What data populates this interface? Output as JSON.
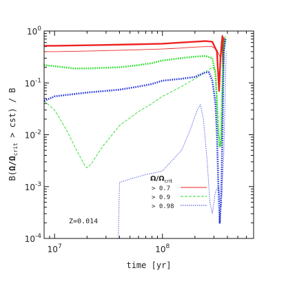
{
  "chart_data": {
    "type": "line",
    "title": "",
    "xlabel": "time [yr]",
    "ylabel": "B(Ω/Ωcrit > cst) / B",
    "ylabel_parts": {
      "prefix": "B(",
      "omega_ratio_numerator": "Ω",
      "slash": "/",
      "omega_ratio_denominator": "Ω",
      "subscript": "crit",
      "suffix": " > cst) / B"
    },
    "xscale": "log",
    "yscale": "log",
    "xlim": [
      8000000,
      700000000
    ],
    "ylim": [
      0.0001,
      1
    ],
    "grid": false,
    "legend": {
      "title_main": "Ω/Ω",
      "title_sub": "crit",
      "placement": "lower-center",
      "entries": [
        "> 0.7",
        "> 0.9",
        "> 0.98"
      ]
    },
    "annotation": "Z=0.014",
    "x_ticks": [
      {
        "value": 10000000,
        "base": "10",
        "exp": "7"
      },
      {
        "value": 100000000,
        "base": "10",
        "exp": "8"
      }
    ],
    "y_ticks": [
      {
        "value": 1,
        "base": "10",
        "exp": "0"
      },
      {
        "value": 0.1,
        "base": "10",
        "exp": "-1"
      },
      {
        "value": 0.01,
        "base": "10",
        "exp": "-2"
      },
      {
        "value": 0.001,
        "base": "10",
        "exp": "-3"
      },
      {
        "value": 0.0001,
        "base": "10",
        "exp": "-4"
      }
    ],
    "series": [
      {
        "name": "> 0.7",
        "mass_curves": [
          {
            "color": "#ee2222",
            "style": "solid-thick",
            "points": [
              [
                8000000,
                0.52
              ],
              [
                10000000,
                0.52
              ],
              [
                20000000,
                0.53
              ],
              [
                50000000,
                0.55
              ],
              [
                100000000,
                0.57
              ],
              [
                150000000,
                0.6
              ],
              [
                200000000,
                0.62
              ],
              [
                250000000,
                0.64
              ],
              [
                290000000,
                0.62
              ],
              [
                320000000,
                0.4
              ],
              [
                335000000,
                0.07
              ],
              [
                345000000,
                0.3
              ],
              [
                355000000,
                0.6
              ],
              [
                360000000,
                0.8
              ],
              [
                365000000,
                0.2
              ],
              [
                370000000,
                0.75
              ]
            ]
          },
          {
            "color": "#ee2222",
            "style": "solid-thin",
            "points": [
              [
                8000000,
                0.4
              ],
              [
                10000000,
                0.4
              ],
              [
                20000000,
                0.41
              ],
              [
                50000000,
                0.43
              ],
              [
                100000000,
                0.45
              ],
              [
                150000000,
                0.47
              ],
              [
                200000000,
                0.49
              ],
              [
                250000000,
                0.5
              ],
              [
                290000000,
                0.5
              ],
              [
                320000000,
                0.43
              ],
              [
                345000000,
                0.3
              ],
              [
                355000000,
                0.5
              ],
              [
                362000000,
                0.75
              ]
            ]
          }
        ]
      },
      {
        "name": "> 0.9",
        "mass_curves": [
          {
            "color": "#22dd22",
            "style": "dotted-thick",
            "points": [
              [
                8000000,
                0.22
              ],
              [
                10000000,
                0.21
              ],
              [
                15000000,
                0.19
              ],
              [
                20000000,
                0.19
              ],
              [
                40000000,
                0.2
              ],
              [
                60000000,
                0.22
              ],
              [
                80000000,
                0.24
              ],
              [
                100000000,
                0.27
              ],
              [
                150000000,
                0.3
              ],
              [
                200000000,
                0.32
              ],
              [
                250000000,
                0.33
              ],
              [
                290000000,
                0.3
              ],
              [
                310000000,
                0.15
              ],
              [
                320000000,
                0.04
              ],
              [
                330000000,
                0.01
              ],
              [
                340000000,
                0.006
              ],
              [
                350000000,
                0.008
              ],
              [
                360000000,
                0.1
              ],
              [
                370000000,
                0.5
              ],
              [
                380000000,
                0.8
              ]
            ]
          },
          {
            "color": "#22dd22",
            "style": "dashed-thin",
            "points": [
              [
                8000000,
                0.045
              ],
              [
                10000000,
                0.03
              ],
              [
                13000000,
                0.012
              ],
              [
                16000000,
                0.005
              ],
              [
                19000000,
                0.0026
              ],
              [
                20000000,
                0.0023
              ],
              [
                22000000,
                0.0028
              ],
              [
                28000000,
                0.006
              ],
              [
                40000000,
                0.015
              ],
              [
                60000000,
                0.028
              ],
              [
                80000000,
                0.04
              ],
              [
                100000000,
                0.055
              ],
              [
                150000000,
                0.085
              ],
              [
                200000000,
                0.12
              ],
              [
                250000000,
                0.16
              ],
              [
                290000000,
                0.2
              ],
              [
                310000000,
                0.18
              ],
              [
                320000000,
                0.05
              ],
              [
                330000000,
                0.012
              ],
              [
                340000000,
                0.008
              ],
              [
                350000000,
                0.006
              ],
              [
                360000000,
                0.1
              ],
              [
                370000000,
                0.6
              ]
            ]
          }
        ]
      },
      {
        "name": "> 0.98",
        "mass_curves": [
          {
            "color": "#2233dd",
            "style": "dotted-thick",
            "points": [
              [
                8000000,
                0.045
              ],
              [
                10000000,
                0.055
              ],
              [
                20000000,
                0.065
              ],
              [
                40000000,
                0.074
              ],
              [
                60000000,
                0.085
              ],
              [
                80000000,
                0.095
              ],
              [
                100000000,
                0.11
              ],
              [
                150000000,
                0.12
              ],
              [
                200000000,
                0.13
              ],
              [
                250000000,
                0.16
              ],
              [
                270000000,
                0.16
              ],
              [
                290000000,
                0.11
              ],
              [
                310000000,
                0.04
              ],
              [
                320000000,
                0.01
              ],
              [
                330000000,
                0.001
              ],
              [
                340000000,
                0.0002
              ],
              [
                350000000,
                0.0006
              ],
              [
                360000000,
                0.01
              ],
              [
                370000000,
                0.4
              ],
              [
                385000000,
                0.7
              ]
            ]
          },
          {
            "color": "#2233dd",
            "style": "dotted-thin",
            "points": [
              [
                39000000,
                0.0001
              ],
              [
                40000000,
                0.0012
              ],
              [
                50000000,
                0.0014
              ],
              [
                70000000,
                0.0017
              ],
              [
                100000000,
                0.002
              ],
              [
                150000000,
                0.005
              ],
              [
                180000000,
                0.012
              ],
              [
                210000000,
                0.03
              ],
              [
                225000000,
                0.038
              ],
              [
                240000000,
                0.02
              ],
              [
                260000000,
                0.003
              ],
              [
                275000000,
                0.0005
              ],
              [
                290000000,
                0.0003
              ],
              [
                310000000,
                0.0008
              ],
              [
                330000000,
                0.001
              ],
              [
                350000000,
                0.0004
              ],
              [
                370000000,
                0.004
              ],
              [
                390000000,
                0.4
              ]
            ]
          }
        ]
      }
    ]
  }
}
